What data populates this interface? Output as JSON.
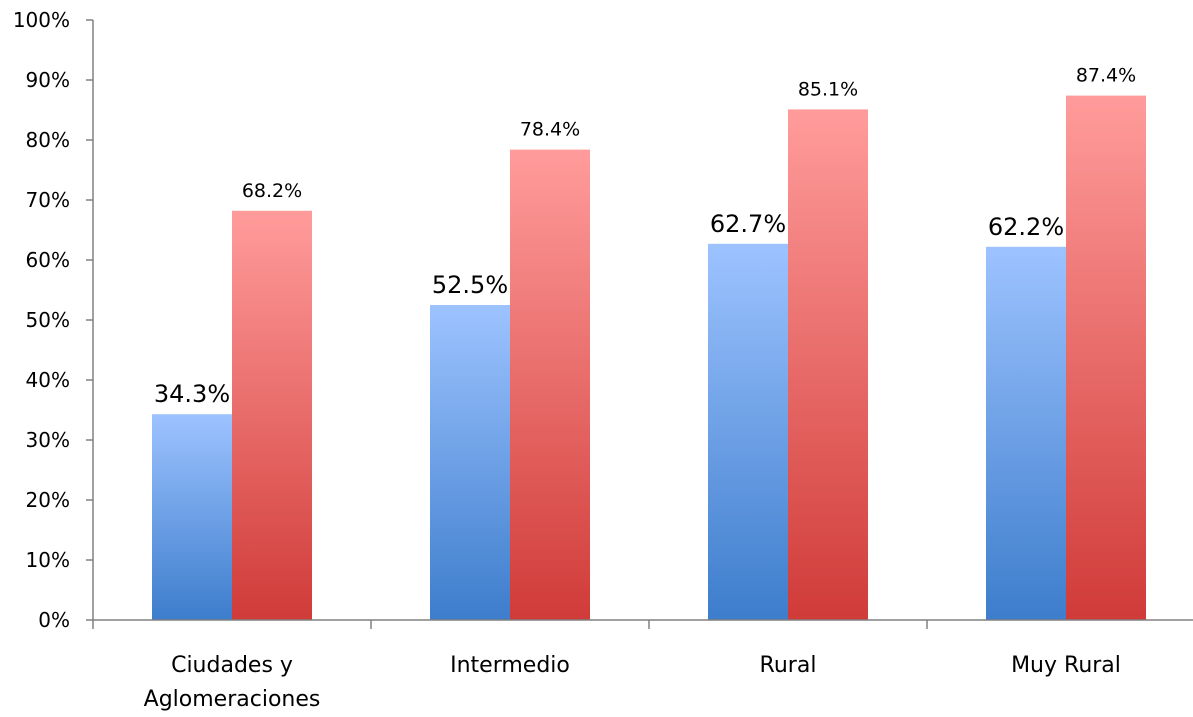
{
  "chart_data": {
    "type": "bar",
    "categories": [
      [
        "Ciudades y",
        "Aglomeraciones"
      ],
      [
        "Intermedio"
      ],
      [
        "Rural"
      ],
      [
        "Muy Rural"
      ]
    ],
    "series": [
      {
        "values": [
          34.3,
          52.5,
          62.7,
          62.2
        ],
        "labels": [
          "34.3%",
          "52.5%",
          "62.7%",
          "62.2%"
        ],
        "color_top": "#9dc3ff",
        "color_bottom": "#3d7dcc"
      },
      {
        "values": [
          68.2,
          78.4,
          85.1,
          87.4
        ],
        "labels": [
          "68.2%",
          "78.4%",
          "85.1%",
          "87.4%"
        ],
        "color_top": "#ff9c9b",
        "color_bottom": "#d03b38"
      }
    ],
    "yticks": [
      "0%",
      "10%",
      "20%",
      "30%",
      "40%",
      "50%",
      "60%",
      "70%",
      "80%",
      "90%",
      "100%"
    ],
    "ylim": [
      0,
      100
    ],
    "grid": false,
    "legend": "none",
    "title": "",
    "xlabel": "",
    "ylabel": ""
  }
}
